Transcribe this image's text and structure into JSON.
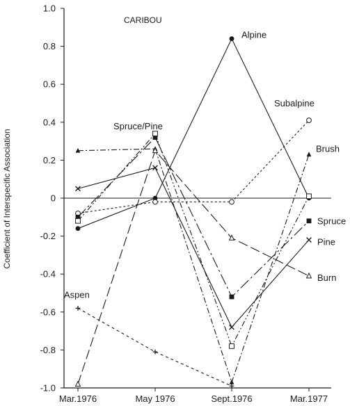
{
  "chart_data": {
    "type": "line",
    "title": "CARIBOU",
    "xlabel": "",
    "ylabel": "Coefficient of Interspecific Association",
    "categories": [
      "Mar.1976",
      "May 1976",
      "Sept.1976",
      "Mar.1977"
    ],
    "ylim": [
      -1.0,
      1.0
    ],
    "yticks": [
      1.0,
      0.8,
      0.6,
      0.4,
      0.2,
      0,
      -0.2,
      -0.4,
      -0.6,
      -0.8,
      -1.0
    ],
    "ytick_labels": [
      "1.0",
      "0.8",
      "0.6",
      "0.4",
      "0.2",
      "0",
      "-0.2",
      "-0.4",
      "-0.6",
      "-0.8",
      "-1.0"
    ],
    "zero_line": true,
    "grid": false,
    "series": [
      {
        "name": "Alpine",
        "values": [
          -0.16,
          0.0,
          0.84,
          0.0
        ],
        "marker": "filled-circle",
        "dash": "solid",
        "color": "#1a1a1a"
      },
      {
        "name": "Subalpine",
        "values": [
          -0.08,
          -0.02,
          -0.02,
          0.41
        ],
        "marker": "open-circle",
        "dash": "short-dash",
        "color": "#1a1a1a"
      },
      {
        "name": "Brush",
        "values": [
          0.25,
          0.26,
          -0.97,
          0.23
        ],
        "marker": "filled-triangle",
        "dash": "dash-dot",
        "color": "#1a1a1a"
      },
      {
        "name": "Spruce",
        "values": [
          -0.1,
          0.32,
          -0.52,
          -0.12
        ],
        "marker": "filled-square",
        "dash": "long-dash-dot",
        "color": "#1a1a1a"
      },
      {
        "name": "Pine",
        "values": [
          0.05,
          0.16,
          -0.68,
          -0.22
        ],
        "marker": "x",
        "dash": "solid",
        "color": "#1a1a1a"
      },
      {
        "name": "Burn",
        "values": [
          -0.98,
          0.25,
          -0.21,
          -0.41
        ],
        "marker": "open-triangle",
        "dash": "long-dash",
        "color": "#1a1a1a"
      },
      {
        "name": "Aspen",
        "values": [
          -0.58,
          -0.81,
          -0.99,
          null
        ],
        "marker": "plus",
        "dash": "dash",
        "color": "#1a1a1a"
      },
      {
        "name": "Spruce/Pine",
        "values": [
          -0.12,
          0.34,
          -0.78,
          0.01
        ],
        "marker": "open-square",
        "dash": "dash-dot-dot",
        "color": "#1a1a1a"
      }
    ],
    "annotations": [
      {
        "text": "Alpine",
        "x": "Sept.1976",
        "y": 0.86
      },
      {
        "text": "Subalpine",
        "x": "Mar.1977",
        "y": 0.5
      },
      {
        "text": "Brush",
        "x": "Mar.1977",
        "y": 0.26
      },
      {
        "text": "Spruce/Pine",
        "x": "May 1976",
        "y": 0.38
      },
      {
        "text": "Spruce",
        "x": "Mar.1977",
        "y": -0.12
      },
      {
        "text": "Pine",
        "x": "Mar.1977",
        "y": -0.23
      },
      {
        "text": "Burn",
        "x": "Mar.1977",
        "y": -0.42
      },
      {
        "text": "Aspen",
        "x": "Mar.1976",
        "y": -0.51
      }
    ]
  }
}
